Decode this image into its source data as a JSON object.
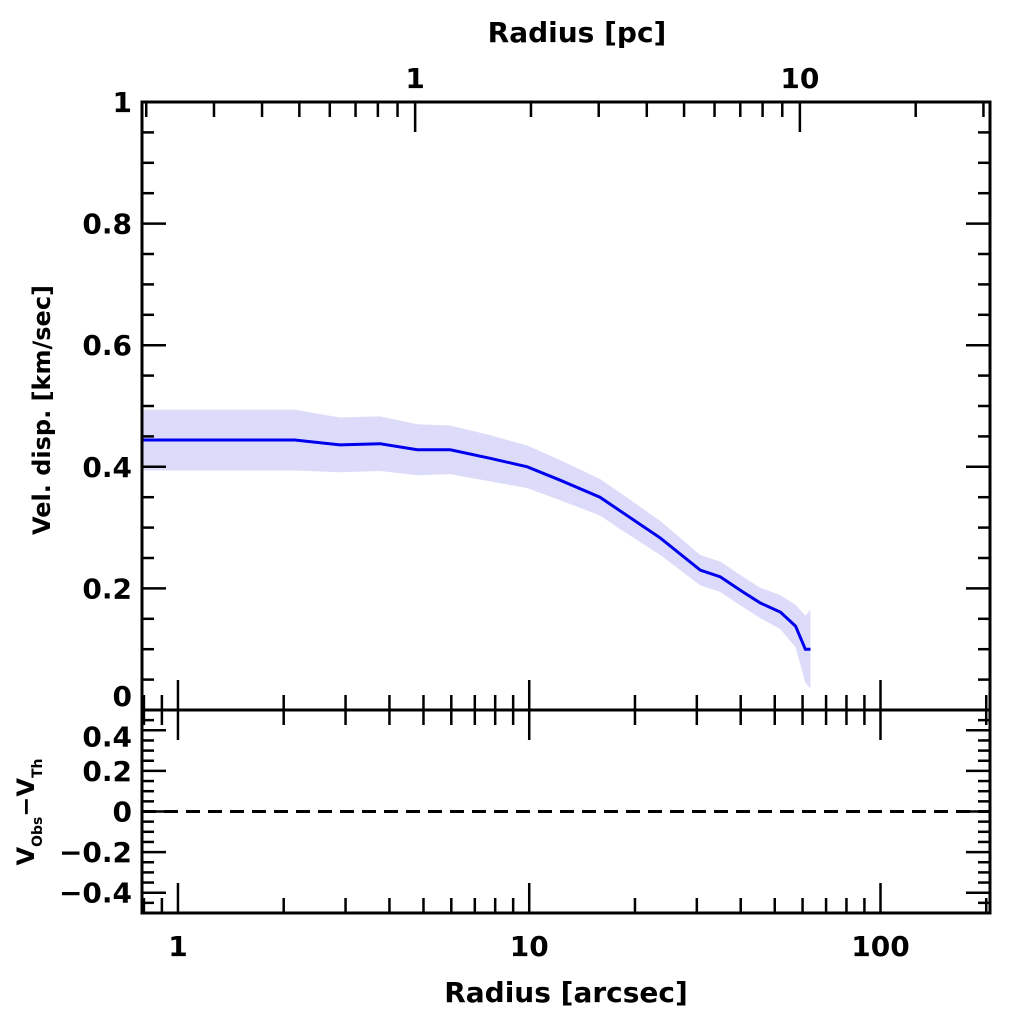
{
  "chart_data": {
    "type": "line",
    "panels": [
      {
        "name": "main",
        "ylabel": "Vel. disp. [km/sec]",
        "ylim": [
          0,
          1
        ],
        "yticks": [
          0,
          0.2,
          0.4,
          0.6,
          0.8,
          1
        ],
        "ytick_labels": [
          "0",
          "0.2",
          "0.4",
          "0.6",
          "0.8",
          "1"
        ],
        "series": [
          {
            "name": "velocity dispersion",
            "color": "#0000ee",
            "band_color": "#dcdcfa",
            "x": [
              0.79,
              0.98,
              1.5,
              2.15,
              2.89,
              3.76,
              4.8,
              5.96,
              7.74,
              9.87,
              12.25,
              15.9,
              18.2,
              23.6,
              30.7,
              35.0,
              39.9,
              45.5,
              51.9,
              57.3,
              61.1,
              63.2
            ],
            "y": [
              0.444,
              0.444,
              0.444,
              0.444,
              0.436,
              0.438,
              0.428,
              0.428,
              0.414,
              0.4,
              0.378,
              0.35,
              0.327,
              0.283,
              0.23,
              0.219,
              0.197,
              0.176,
              0.161,
              0.138,
              0.1,
              0.1
            ],
            "err": [
              0.05,
              0.05,
              0.05,
              0.05,
              0.045,
              0.045,
              0.042,
              0.04,
              0.038,
              0.035,
              0.033,
              0.03,
              0.03,
              0.028,
              0.025,
              0.025,
              0.025,
              0.025,
              0.028,
              0.035,
              0.055,
              0.065
            ]
          }
        ]
      },
      {
        "name": "residual",
        "ylabel_main": "V",
        "ylabel_sub1": "Obs",
        "ylabel_dash": "−",
        "ylabel_sub2": "Th",
        "ylim": [
          -0.5,
          0.5
        ],
        "yticks": [
          -0.4,
          -0.2,
          0,
          0.2,
          0.4
        ],
        "ytick_labels": [
          "−0.4",
          "−0.2",
          "0",
          "0.2",
          "0.4"
        ],
        "reference_line": {
          "y": 0,
          "style": "dashed"
        }
      }
    ],
    "xaxis_bottom": {
      "label": "Radius [arcsec]",
      "scale": "log",
      "xlim": [
        0.79,
        205
      ],
      "ticks": [
        1,
        10,
        100
      ],
      "tick_labels": [
        "1",
        "10",
        "100"
      ]
    },
    "xaxis_top": {
      "label": "Radius [pc]",
      "scale": "log",
      "xlim": [
        0.195,
        31.2
      ],
      "ticks": [
        1,
        10
      ],
      "tick_labels": [
        "1",
        "10"
      ]
    }
  }
}
